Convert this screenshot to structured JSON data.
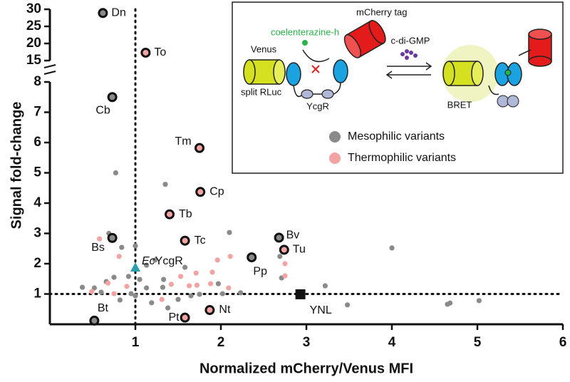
{
  "chart_data": {
    "type": "scatter",
    "xlabel": "Normalized mCherry/Venus MFI",
    "ylabel": "Signal fold-change",
    "xlim": [
      0,
      6
    ],
    "xticks": [
      1,
      2,
      3,
      4,
      5,
      6
    ],
    "y_segments": [
      {
        "ylim": [
          0,
          8
        ],
        "yticks": [
          1,
          2,
          3,
          4,
          5,
          6,
          7,
          8
        ]
      },
      {
        "ylim": [
          15,
          30
        ],
        "yticks": [
          15,
          20,
          25,
          30
        ]
      }
    ],
    "reference_lines": {
      "x": 1,
      "y": 1
    },
    "series": [
      {
        "name": "Mesophilic variants",
        "color": "#8a8a8a",
        "x": [
          0.62,
          0.73,
          0.73,
          0.52,
          2.36,
          2.68,
          0.77,
          1.35,
          2.1,
          4.0,
          1.0,
          0.69,
          0.84,
          1.23,
          3.22,
          3.48,
          4.65,
          4.68,
          5.02,
          2.69,
          2.71,
          1.97,
          2.23,
          1.32,
          0.38,
          0.52,
          0.6,
          0.66,
          0.75,
          0.92,
          1.05,
          1.13,
          0.95,
          0.82,
          1.19,
          1.38,
          1.5,
          1.65,
          1.0,
          1.33,
          1.13,
          1.58,
          1.75,
          2.02
        ],
        "values": [
          28.9,
          7.5,
          2.85,
          0.12,
          2.21,
          2.86,
          5.0,
          4.62,
          3.03,
          2.52,
          2.59,
          3.0,
          2.54,
          2.12,
          1.27,
          0.64,
          0.66,
          0.7,
          0.78,
          2.24,
          1.53,
          1.34,
          1.04,
          1.22,
          1.22,
          1.2,
          1.06,
          1.41,
          1.55,
          1.58,
          1.48,
          1.2,
          1.01,
          0.8,
          0.71,
          0.54,
          0.82,
          0.94,
          0.94,
          1.48,
          1.95,
          1.88,
          0.99,
          1.01
        ],
        "labels": [
          "Dn",
          "Cb",
          "Bs",
          "Bt",
          "Pp",
          "Bv",
          null,
          null,
          null,
          null,
          null,
          null,
          null,
          null,
          null,
          null,
          null,
          null,
          null,
          null,
          null,
          null,
          null,
          null,
          null,
          null,
          null,
          null,
          null,
          null,
          null,
          null,
          null,
          null,
          null,
          null,
          null,
          null,
          null,
          null,
          null,
          null,
          null,
          null
        ]
      },
      {
        "name": "Thermophilic variants",
        "color": "#f4a3a3",
        "x": [
          1.12,
          1.75,
          1.76,
          1.4,
          1.58,
          2.74,
          1.58,
          1.87,
          0.58,
          0.81,
          2.11,
          1.96,
          1.9,
          2.75,
          2.75,
          1.71,
          1.53,
          1.72,
          1.88,
          1.63,
          1.42,
          1.31,
          0.75,
          0.68,
          0.49,
          0.9,
          2.09
        ],
        "values": [
          17.3,
          5.82,
          4.37,
          3.63,
          2.76,
          2.46,
          0.22,
          0.47,
          2.82,
          2.24,
          2.24,
          2.12,
          1.72,
          2.0,
          1.6,
          1.69,
          1.58,
          1.29,
          1.34,
          1.27,
          1.32,
          0.82,
          1.01,
          1.36,
          1.08,
          1.25,
          1.2
        ],
        "labels": [
          "To",
          "Tm",
          "Cp",
          "Tb",
          "Tc",
          "Tu",
          "Pt",
          "Nt",
          null,
          null,
          null,
          null,
          null,
          null,
          null,
          null,
          null,
          null,
          null,
          null,
          null,
          null,
          null,
          null,
          null,
          null,
          null
        ]
      }
    ],
    "reference_points": [
      {
        "label_parts": [
          "Ec",
          "YcgR"
        ],
        "marker": "triangle",
        "color": "#2a9fae",
        "x": 1.0,
        "value": 1.86
      },
      {
        "label": "YNL",
        "marker": "square",
        "color": "#111111",
        "x": 2.93,
        "value": 0.99
      }
    ],
    "inset": {
      "mcherry": "mCherry tag",
      "substrate": "coelenterazine-h",
      "venus": "Venus",
      "rluc": "split RLuc",
      "ycgr": "YcgR",
      "ligand": "c-di-GMP",
      "bret": "BRET"
    }
  }
}
